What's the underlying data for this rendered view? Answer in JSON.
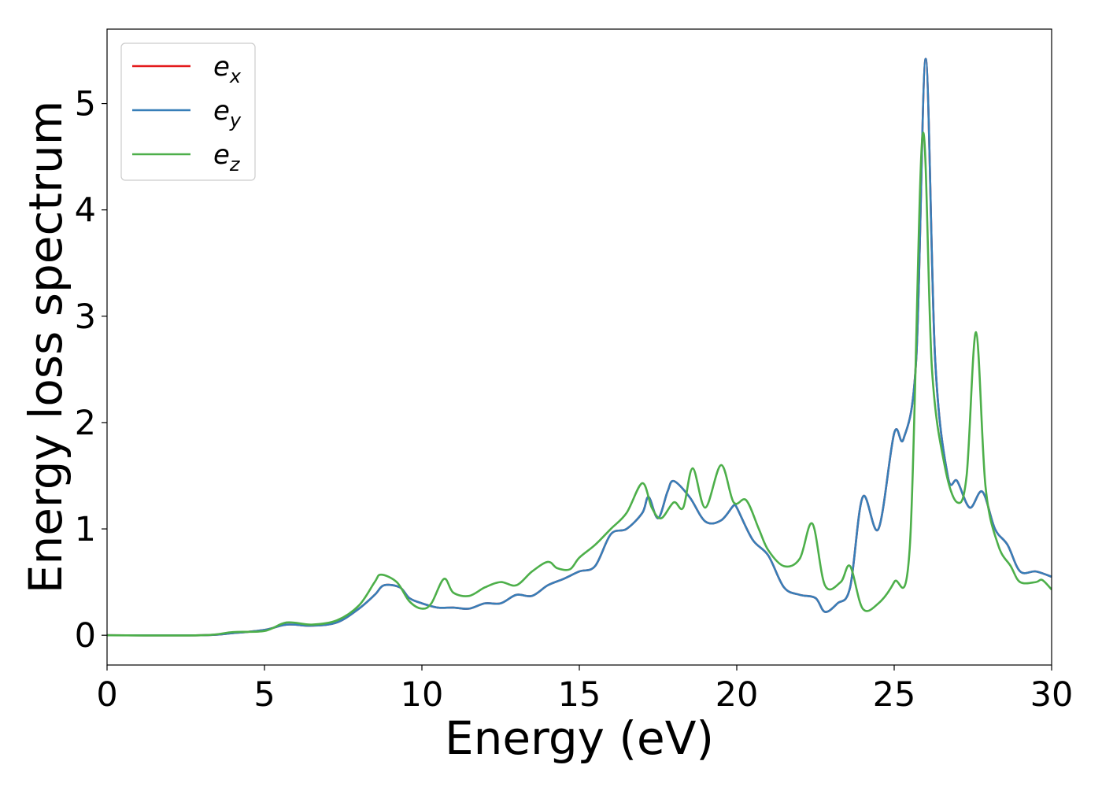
{
  "chart_data": {
    "type": "line",
    "title": "",
    "xlabel": "Energy (eV)",
    "ylabel": "Energy loss spectrum",
    "xlim": [
      0,
      30
    ],
    "ylim": [
      -0.28,
      5.7
    ],
    "xticks": [
      0,
      5,
      10,
      15,
      20,
      25,
      30
    ],
    "yticks": [
      0,
      1,
      2,
      3,
      4,
      5
    ],
    "grid": false,
    "legend_position": "top-left",
    "series": [
      {
        "name": "e_x",
        "label_base": "e",
        "label_sub": "x",
        "color": "#e41a1c",
        "points": [
          [
            0,
            0
          ],
          [
            3,
            0
          ],
          [
            4,
            0.02
          ],
          [
            5,
            0.05
          ],
          [
            5.7,
            0.1
          ],
          [
            6.5,
            0.09
          ],
          [
            7.3,
            0.12
          ],
          [
            8,
            0.25
          ],
          [
            8.5,
            0.38
          ],
          [
            8.8,
            0.47
          ],
          [
            9.3,
            0.45
          ],
          [
            9.6,
            0.35
          ],
          [
            10,
            0.3
          ],
          [
            10.5,
            0.26
          ],
          [
            11,
            0.26
          ],
          [
            11.5,
            0.25
          ],
          [
            12,
            0.3
          ],
          [
            12.5,
            0.3
          ],
          [
            13,
            0.38
          ],
          [
            13.5,
            0.37
          ],
          [
            14,
            0.47
          ],
          [
            14.5,
            0.53
          ],
          [
            15,
            0.6
          ],
          [
            15.5,
            0.65
          ],
          [
            16,
            0.95
          ],
          [
            16.5,
            1.0
          ],
          [
            17,
            1.15
          ],
          [
            17.2,
            1.3
          ],
          [
            17.5,
            1.1
          ],
          [
            17.8,
            1.35
          ],
          [
            18,
            1.45
          ],
          [
            18.5,
            1.3
          ],
          [
            19,
            1.07
          ],
          [
            19.5,
            1.08
          ],
          [
            19.9,
            1.22
          ],
          [
            20,
            1.2
          ],
          [
            20.5,
            0.9
          ],
          [
            21,
            0.75
          ],
          [
            21.5,
            0.45
          ],
          [
            22,
            0.38
          ],
          [
            22.5,
            0.35
          ],
          [
            22.8,
            0.22
          ],
          [
            23.2,
            0.3
          ],
          [
            23.6,
            0.45
          ],
          [
            24,
            1.3
          ],
          [
            24.5,
            1.0
          ],
          [
            25,
            1.9
          ],
          [
            25.3,
            1.85
          ],
          [
            25.7,
            2.6
          ],
          [
            26,
            5.42
          ],
          [
            26.3,
            2.6
          ],
          [
            26.7,
            1.5
          ],
          [
            27,
            1.45
          ],
          [
            27.4,
            1.2
          ],
          [
            27.8,
            1.35
          ],
          [
            28.2,
            1.0
          ],
          [
            28.6,
            0.85
          ],
          [
            29,
            0.6
          ],
          [
            29.5,
            0.6
          ],
          [
            30,
            0.55
          ]
        ]
      },
      {
        "name": "e_y",
        "label_base": "e",
        "label_sub": "y",
        "color": "#377eb8",
        "points": [
          [
            0,
            0
          ],
          [
            3,
            0
          ],
          [
            4,
            0.02
          ],
          [
            5,
            0.05
          ],
          [
            5.7,
            0.1
          ],
          [
            6.5,
            0.09
          ],
          [
            7.3,
            0.12
          ],
          [
            8,
            0.25
          ],
          [
            8.5,
            0.38
          ],
          [
            8.8,
            0.47
          ],
          [
            9.3,
            0.45
          ],
          [
            9.6,
            0.35
          ],
          [
            10,
            0.3
          ],
          [
            10.5,
            0.26
          ],
          [
            11,
            0.26
          ],
          [
            11.5,
            0.25
          ],
          [
            12,
            0.3
          ],
          [
            12.5,
            0.3
          ],
          [
            13,
            0.38
          ],
          [
            13.5,
            0.37
          ],
          [
            14,
            0.47
          ],
          [
            14.5,
            0.53
          ],
          [
            15,
            0.6
          ],
          [
            15.5,
            0.65
          ],
          [
            16,
            0.95
          ],
          [
            16.5,
            1.0
          ],
          [
            17,
            1.15
          ],
          [
            17.2,
            1.3
          ],
          [
            17.5,
            1.1
          ],
          [
            17.8,
            1.35
          ],
          [
            18,
            1.45
          ],
          [
            18.5,
            1.3
          ],
          [
            19,
            1.07
          ],
          [
            19.5,
            1.08
          ],
          [
            19.9,
            1.22
          ],
          [
            20,
            1.2
          ],
          [
            20.5,
            0.9
          ],
          [
            21,
            0.75
          ],
          [
            21.5,
            0.45
          ],
          [
            22,
            0.38
          ],
          [
            22.5,
            0.35
          ],
          [
            22.8,
            0.22
          ],
          [
            23.2,
            0.3
          ],
          [
            23.6,
            0.45
          ],
          [
            24,
            1.3
          ],
          [
            24.5,
            1.0
          ],
          [
            25,
            1.9
          ],
          [
            25.3,
            1.85
          ],
          [
            25.7,
            2.6
          ],
          [
            26,
            5.42
          ],
          [
            26.3,
            2.6
          ],
          [
            26.7,
            1.5
          ],
          [
            27,
            1.45
          ],
          [
            27.4,
            1.2
          ],
          [
            27.8,
            1.35
          ],
          [
            28.2,
            1.0
          ],
          [
            28.6,
            0.85
          ],
          [
            29,
            0.6
          ],
          [
            29.5,
            0.6
          ],
          [
            30,
            0.55
          ]
        ]
      },
      {
        "name": "e_z",
        "label_base": "e",
        "label_sub": "z",
        "color": "#4daf4a",
        "points": [
          [
            0,
            0
          ],
          [
            3,
            0
          ],
          [
            4,
            0.03
          ],
          [
            5,
            0.04
          ],
          [
            5.7,
            0.12
          ],
          [
            6.5,
            0.1
          ],
          [
            7.3,
            0.14
          ],
          [
            8,
            0.28
          ],
          [
            8.5,
            0.5
          ],
          [
            8.7,
            0.57
          ],
          [
            9.2,
            0.5
          ],
          [
            9.6,
            0.32
          ],
          [
            10,
            0.25
          ],
          [
            10.3,
            0.3
          ],
          [
            10.7,
            0.53
          ],
          [
            11,
            0.4
          ],
          [
            11.5,
            0.37
          ],
          [
            12,
            0.45
          ],
          [
            12.5,
            0.5
          ],
          [
            13,
            0.47
          ],
          [
            13.5,
            0.6
          ],
          [
            14,
            0.69
          ],
          [
            14.3,
            0.63
          ],
          [
            14.7,
            0.62
          ],
          [
            15,
            0.73
          ],
          [
            15.5,
            0.85
          ],
          [
            16,
            1.0
          ],
          [
            16.5,
            1.15
          ],
          [
            17,
            1.43
          ],
          [
            17.3,
            1.2
          ],
          [
            17.6,
            1.1
          ],
          [
            18,
            1.25
          ],
          [
            18.3,
            1.2
          ],
          [
            18.6,
            1.57
          ],
          [
            19,
            1.2
          ],
          [
            19.5,
            1.6
          ],
          [
            19.9,
            1.25
          ],
          [
            20.3,
            1.27
          ],
          [
            20.7,
            1.0
          ],
          [
            21,
            0.8
          ],
          [
            21.5,
            0.65
          ],
          [
            22,
            0.72
          ],
          [
            22.4,
            1.05
          ],
          [
            22.8,
            0.47
          ],
          [
            23.3,
            0.5
          ],
          [
            23.6,
            0.65
          ],
          [
            24,
            0.25
          ],
          [
            24.5,
            0.3
          ],
          [
            25,
            0.5
          ],
          [
            25.5,
            0.85
          ],
          [
            25.9,
            4.7
          ],
          [
            26.2,
            2.5
          ],
          [
            26.6,
            1.6
          ],
          [
            27,
            1.25
          ],
          [
            27.3,
            1.5
          ],
          [
            27.6,
            2.85
          ],
          [
            27.9,
            1.4
          ],
          [
            28.3,
            0.85
          ],
          [
            28.7,
            0.65
          ],
          [
            29,
            0.5
          ],
          [
            29.5,
            0.5
          ],
          [
            29.7,
            0.52
          ],
          [
            30,
            0.43
          ]
        ]
      }
    ]
  }
}
